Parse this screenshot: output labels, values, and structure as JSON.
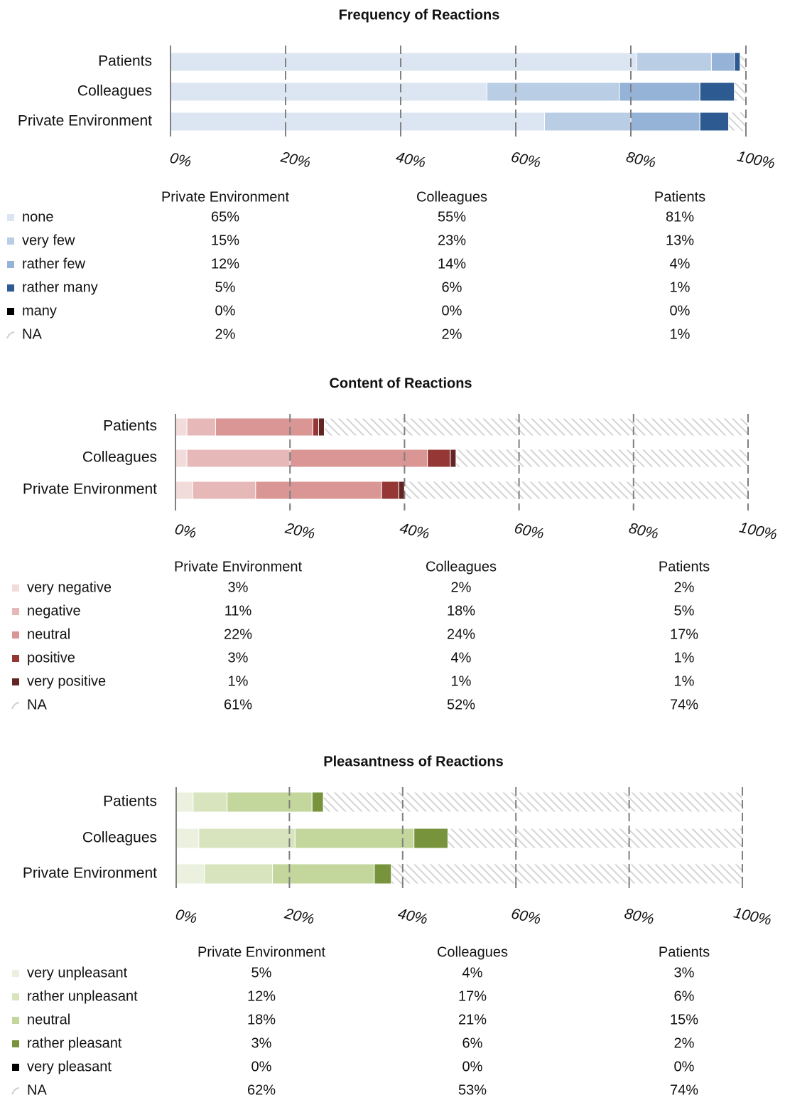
{
  "chart_data": [
    {
      "type": "bar",
      "orientation": "horizontal",
      "stacked": "percent",
      "title": "Frequency of Reactions",
      "categories": [
        "Private Environment",
        "Colleagues",
        "Patients"
      ],
      "xlim": [
        0,
        100
      ],
      "ticks": [
        "0%",
        "20%",
        "40%",
        "60%",
        "80%",
        "100%"
      ],
      "grid": "vertical dashed",
      "series": [
        {
          "name": "none",
          "values": [
            65,
            55,
            81
          ],
          "color": "#dce6f2"
        },
        {
          "name": "very few",
          "values": [
            15,
            23,
            13
          ],
          "color": "#b9cde5"
        },
        {
          "name": "rather few",
          "values": [
            12,
            14,
            4
          ],
          "color": "#95b3d7"
        },
        {
          "name": "rather many",
          "values": [
            5,
            6,
            1
          ],
          "color": "#2e5a92"
        },
        {
          "name": "many",
          "values": [
            0,
            0,
            0
          ],
          "color": "#000000"
        },
        {
          "name": "NA",
          "values": [
            2,
            2,
            1
          ],
          "color": "hatch"
        }
      ],
      "table_labels": [
        [
          "65%",
          "55%",
          "81%"
        ],
        [
          "15%",
          "23%",
          "13%"
        ],
        [
          "12%",
          "14%",
          "4%"
        ],
        [
          "5%",
          "6%",
          "1%"
        ],
        [
          "0%",
          "0%",
          "0%"
        ],
        [
          "2%",
          "2%",
          "1%"
        ]
      ]
    },
    {
      "type": "bar",
      "orientation": "horizontal",
      "stacked": "percent",
      "title": "Content of Reactions",
      "categories": [
        "Private Environment",
        "Colleagues",
        "Patients"
      ],
      "xlim": [
        0,
        100
      ],
      "ticks": [
        "0%",
        "20%",
        "40%",
        "60%",
        "80%",
        "100%"
      ],
      "grid": "vertical dashed",
      "series": [
        {
          "name": "very negative",
          "values": [
            3,
            2,
            2
          ],
          "color": "#f2dcdb"
        },
        {
          "name": "negative",
          "values": [
            11,
            18,
            5
          ],
          "color": "#e6b9b8"
        },
        {
          "name": "neutral",
          "values": [
            22,
            24,
            17
          ],
          "color": "#d99694"
        },
        {
          "name": "positive",
          "values": [
            3,
            4,
            1
          ],
          "color": "#953735"
        },
        {
          "name": "very positive",
          "values": [
            1,
            1,
            1
          ],
          "color": "#632523"
        },
        {
          "name": "NA",
          "values": [
            61,
            52,
            74
          ],
          "color": "hatch"
        }
      ],
      "table_labels": [
        [
          "3%",
          "2%",
          "2%"
        ],
        [
          "11%",
          "18%",
          "5%"
        ],
        [
          "22%",
          "24%",
          "17%"
        ],
        [
          "3%",
          "4%",
          "1%"
        ],
        [
          "1%",
          "1%",
          "1%"
        ],
        [
          "61%",
          "52%",
          "74%"
        ]
      ]
    },
    {
      "type": "bar",
      "orientation": "horizontal",
      "stacked": "percent",
      "title": "Pleasantness of Reactions",
      "categories": [
        "Private Environment",
        "Colleagues",
        "Patients"
      ],
      "xlim": [
        0,
        100
      ],
      "ticks": [
        "0%",
        "20%",
        "40%",
        "60%",
        "80%",
        "100%"
      ],
      "grid": "vertical dashed",
      "series": [
        {
          "name": "very unpleasant",
          "values": [
            5,
            4,
            3
          ],
          "color": "#ebf1de"
        },
        {
          "name": "rather unpleasant",
          "values": [
            12,
            17,
            6
          ],
          "color": "#d7e4bd"
        },
        {
          "name": "neutral",
          "values": [
            18,
            21,
            15
          ],
          "color": "#c3d69b"
        },
        {
          "name": "rather pleasant",
          "values": [
            3,
            6,
            2
          ],
          "color": "#77933c"
        },
        {
          "name": "very pleasant",
          "values": [
            0,
            0,
            0
          ],
          "color": "#000000"
        },
        {
          "name": "NA",
          "values": [
            62,
            53,
            74
          ],
          "color": "hatch"
        }
      ],
      "table_labels": [
        [
          "5%",
          "4%",
          "3%"
        ],
        [
          "12%",
          "17%",
          "6%"
        ],
        [
          "18%",
          "21%",
          "15%"
        ],
        [
          "3%",
          "6%",
          "2%"
        ],
        [
          "0%",
          "0%",
          "0%"
        ],
        [
          "62%",
          "53%",
          "74%"
        ]
      ]
    }
  ]
}
